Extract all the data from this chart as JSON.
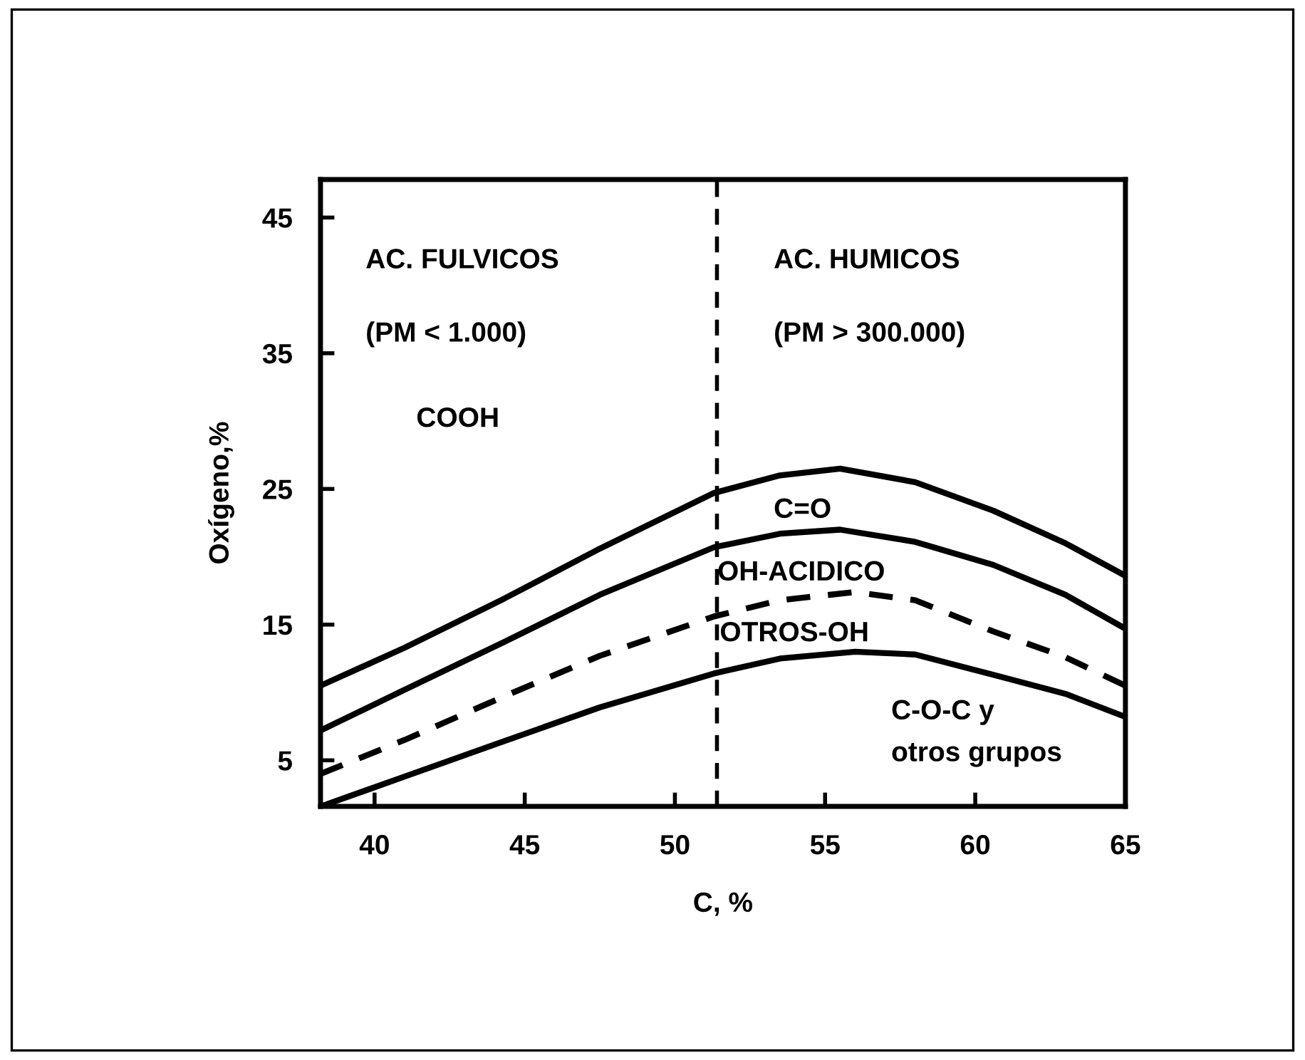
{
  "chart_data": {
    "type": "line",
    "xlabel": "C, %",
    "ylabel": "Oxígeno,%",
    "xlim": [
      38.2,
      65
    ],
    "xticks": [
      40,
      45,
      50,
      55,
      60,
      65
    ],
    "ylim": [
      1.6,
      47.8
    ],
    "yticks": [
      5,
      15,
      25,
      35,
      45
    ],
    "grid": false,
    "legend": false,
    "marker": "none",
    "series": [
      {
        "color": "#000000",
        "line_style": "solid",
        "x": [
          38.2,
          41,
          44.3,
          47.5,
          51.3,
          53.5,
          55.5,
          58,
          60.6,
          63,
          65
        ],
        "values": [
          10.5,
          13.3,
          16.9,
          20.6,
          24.7,
          26.0,
          26.5,
          25.5,
          23.4,
          21.0,
          18.6
        ]
      },
      {
        "color": "#000000",
        "line_style": "solid",
        "x": [
          38.2,
          41,
          44.3,
          47.5,
          51.3,
          53.5,
          55.5,
          58,
          60.6,
          63,
          65
        ],
        "values": [
          7.2,
          10.2,
          13.7,
          17.2,
          20.7,
          21.7,
          22.0,
          21.1,
          19.4,
          17.2,
          14.7
        ]
      },
      {
        "color": "#000000",
        "line_style": "dashed",
        "x": [
          38.2,
          41,
          44.3,
          47.5,
          51.3,
          53.5,
          56,
          58,
          60.6,
          63,
          65
        ],
        "values": [
          4.0,
          6.5,
          9.7,
          12.7,
          15.6,
          16.8,
          17.4,
          16.8,
          14.5,
          12.6,
          10.5
        ]
      },
      {
        "color": "#000000",
        "line_style": "solid",
        "x": [
          38.2,
          41,
          44.3,
          47.5,
          51.3,
          53.5,
          56,
          58,
          60.6,
          63,
          65
        ],
        "values": [
          1.6,
          3.8,
          6.4,
          8.9,
          11.4,
          12.5,
          13.0,
          12.8,
          11.3,
          9.9,
          8.2
        ]
      }
    ],
    "ref_lines": [
      {
        "axis": "x",
        "value": 51.4,
        "color": "#000000",
        "line_style": "dashed"
      }
    ],
    "annotations": [
      "AC. FULVICOS",
      "(PM < 1.000)",
      "COOH",
      "AC. HUMICOS",
      "(PM > 300.000)",
      "C=O",
      "OH-ACIDICO",
      "OTROS-OH",
      "C-O-C y\notros grupos"
    ]
  }
}
